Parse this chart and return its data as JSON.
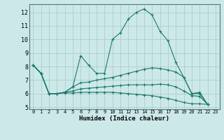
{
  "title": "",
  "xlabel": "Humidex (Indice chaleur)",
  "xlim": [
    -0.5,
    23.5
  ],
  "ylim": [
    4.85,
    12.6
  ],
  "yticks": [
    5,
    6,
    7,
    8,
    9,
    10,
    11,
    12
  ],
  "xticks": [
    0,
    1,
    2,
    3,
    4,
    5,
    6,
    7,
    8,
    9,
    10,
    11,
    12,
    13,
    14,
    15,
    16,
    17,
    18,
    19,
    20,
    21,
    22,
    23
  ],
  "bg_color": "#cde8e8",
  "line_color": "#1a7a6e",
  "grid_color": "#aacece",
  "lines": [
    [
      8.1,
      7.5,
      6.0,
      6.0,
      6.1,
      6.5,
      8.8,
      8.1,
      7.5,
      7.5,
      10.0,
      10.5,
      11.5,
      12.0,
      12.25,
      11.8,
      10.6,
      9.9,
      8.3,
      7.2,
      6.0,
      6.0,
      5.2
    ],
    [
      8.1,
      7.5,
      6.0,
      6.0,
      6.1,
      6.5,
      6.8,
      6.85,
      7.0,
      7.1,
      7.2,
      7.35,
      7.5,
      7.65,
      7.8,
      7.9,
      7.85,
      7.75,
      7.6,
      7.2,
      6.0,
      6.1,
      5.2
    ],
    [
      8.1,
      7.5,
      6.0,
      6.0,
      6.1,
      6.2,
      6.35,
      6.4,
      6.45,
      6.5,
      6.55,
      6.6,
      6.65,
      6.65,
      6.65,
      6.65,
      6.7,
      6.65,
      6.5,
      6.2,
      5.85,
      5.8,
      5.2
    ],
    [
      8.1,
      7.5,
      6.0,
      6.0,
      6.05,
      6.05,
      6.1,
      6.1,
      6.1,
      6.1,
      6.1,
      6.05,
      6.0,
      5.95,
      5.9,
      5.85,
      5.75,
      5.65,
      5.5,
      5.35,
      5.25,
      5.25,
      5.2
    ]
  ]
}
